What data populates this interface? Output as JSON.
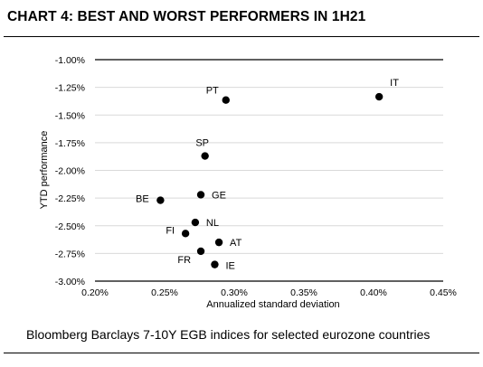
{
  "title": "CHART 4: BEST AND WORST PERFORMERS IN 1H21",
  "footnote": "Bloomberg Barclays 7-10Y EGB indices for selected eurozone countries",
  "colors": {
    "marker": "#000000",
    "gridline": "#d9d9d9",
    "axis": "#000000"
  },
  "chart_data": {
    "type": "scatter",
    "xlabel": "Annualized standard deviation",
    "ylabel": "YTD performance",
    "xlim": [
      0.002,
      0.0045
    ],
    "ylim": [
      -0.03,
      -0.01
    ],
    "x_ticks": [
      0.002,
      0.0025,
      0.003,
      0.0035,
      0.004,
      0.0045
    ],
    "x_tick_labels": [
      "0.20%",
      "0.25%",
      "0.30%",
      "0.35%",
      "0.40%",
      "0.45%"
    ],
    "y_ticks": [
      -0.01,
      -0.0125,
      -0.015,
      -0.0175,
      -0.02,
      -0.0225,
      -0.025,
      -0.0275,
      -0.03
    ],
    "y_tick_labels": [
      "-1.00%",
      "-1.25%",
      "-1.50%",
      "-1.75%",
      "-2.00%",
      "-2.25%",
      "-2.50%",
      "-2.75%",
      "-3.00%"
    ],
    "grid": true,
    "legend": "none",
    "points": [
      {
        "label": "IT",
        "x": 0.00404,
        "y": -0.01335
      },
      {
        "label": "PT",
        "x": 0.00294,
        "y": -0.01365
      },
      {
        "label": "SP",
        "x": 0.00279,
        "y": -0.0187
      },
      {
        "label": "BE",
        "x": 0.00247,
        "y": -0.0227
      },
      {
        "label": "GE",
        "x": 0.00276,
        "y": -0.0222
      },
      {
        "label": "NL",
        "x": 0.00272,
        "y": -0.0247
      },
      {
        "label": "FI",
        "x": 0.00265,
        "y": -0.0257
      },
      {
        "label": "AT",
        "x": 0.00289,
        "y": -0.0265
      },
      {
        "label": "FR",
        "x": 0.00276,
        "y": -0.0273
      },
      {
        "label": "IE",
        "x": 0.00286,
        "y": -0.0285
      }
    ]
  }
}
